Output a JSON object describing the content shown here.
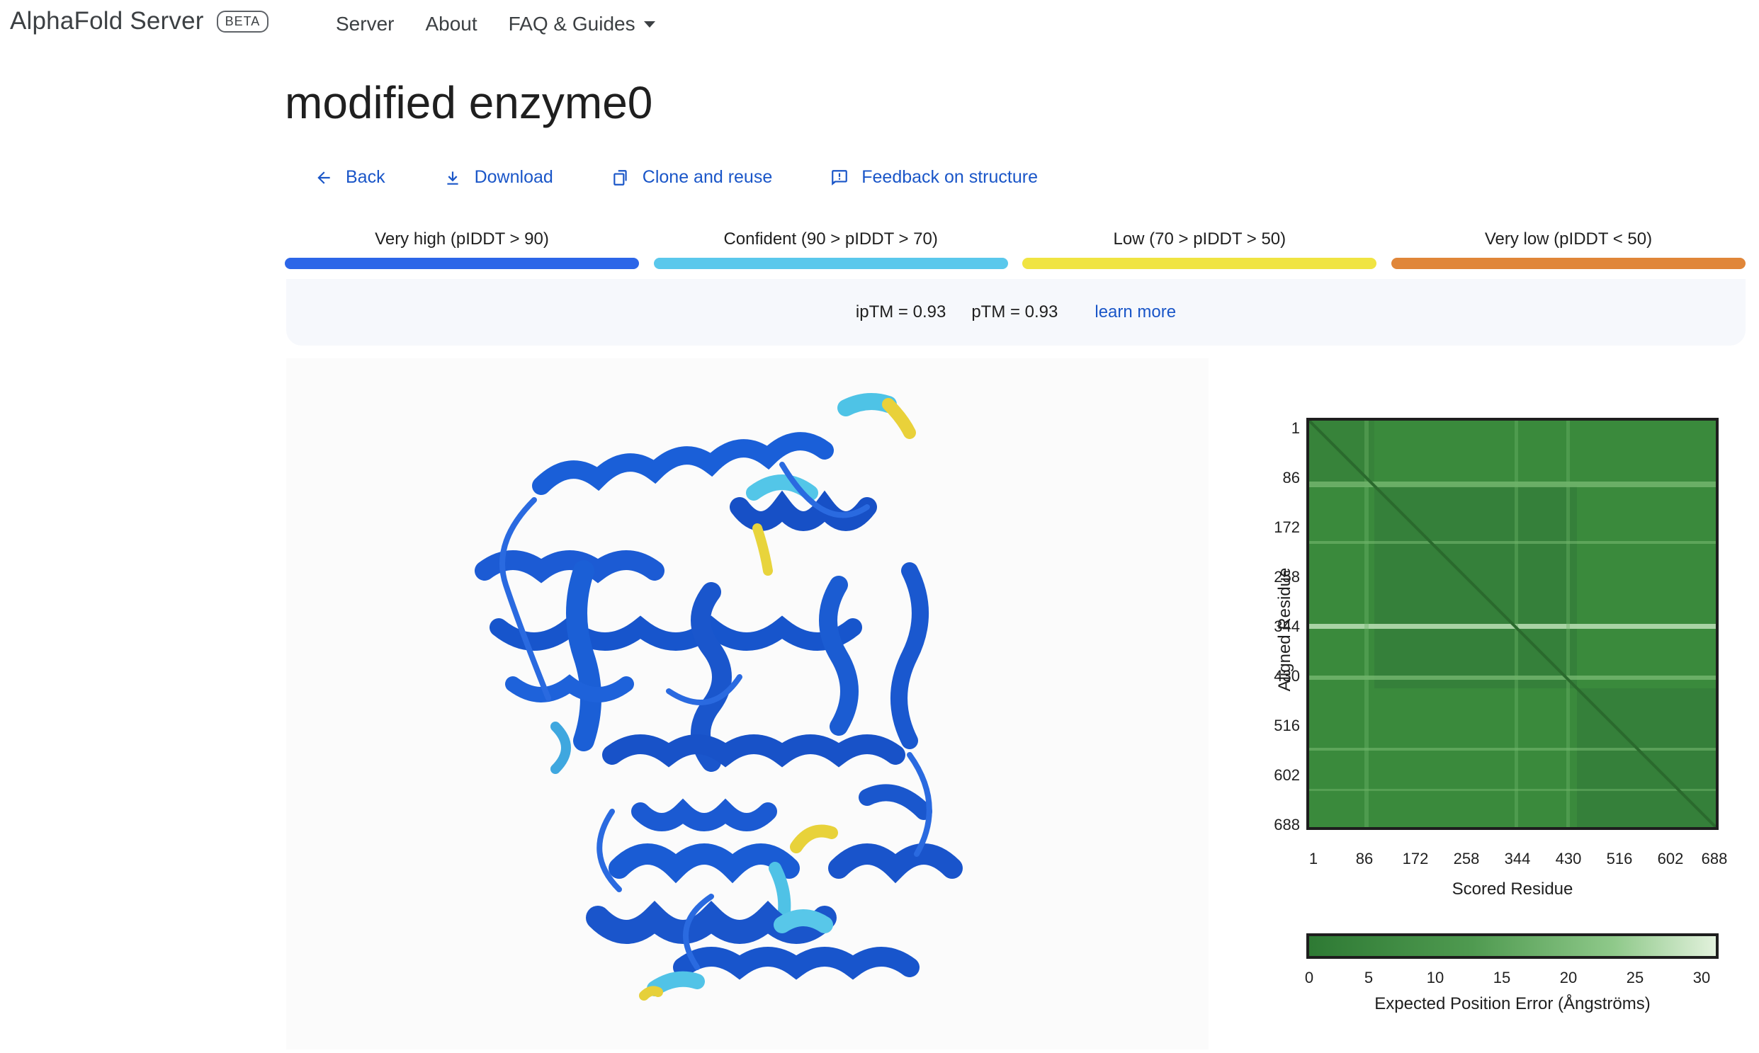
{
  "header": {
    "brand": "AlphaFold Server",
    "badge": "BETA",
    "nav": [
      {
        "label": "Server"
      },
      {
        "label": "About"
      },
      {
        "label": "FAQ & Guides"
      }
    ]
  },
  "page": {
    "title": "modified enzyme0",
    "actions": {
      "back": "Back",
      "download": "Download",
      "clone": "Clone and reuse",
      "feedback": "Feedback on structure"
    }
  },
  "legend": [
    {
      "label": "Very high (pIDDT > 90)",
      "color": "#2c66e8"
    },
    {
      "label": "Confident (90 > pIDDT > 70)",
      "color": "#5ac8ec"
    },
    {
      "label": "Low (70 > pIDDT > 50)",
      "color": "#f0e442"
    },
    {
      "label": "Very low (pIDDT < 50)",
      "color": "#e08639"
    }
  ],
  "metrics": {
    "iptm": "ipTM = 0.93",
    "ptm": "pTM = 0.93",
    "learn_more": "learn more"
  },
  "pae": {
    "ylabel": "Aligned Residue",
    "xlabel": "Scored Residue",
    "ticks": [
      "1",
      "86",
      "172",
      "258",
      "344",
      "430",
      "516",
      "602",
      "688"
    ],
    "colorbar_ticks": [
      "0",
      "5",
      "10",
      "15",
      "20",
      "25",
      "30"
    ],
    "colorbar_label": "Expected Position Error (Ångströms)",
    "colors": {
      "low": "#2e7a34",
      "high": "#e2f1dc"
    }
  }
}
